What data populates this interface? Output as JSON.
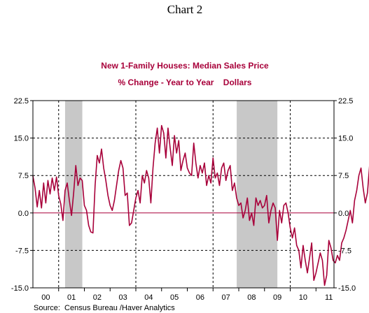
{
  "caption": "Chart 2",
  "chart_data": {
    "type": "line",
    "title": "New 1-Family Houses: Median Sales Price",
    "subtitle": "% Change - Year to Year    Dollars",
    "source": "Source:  Census Bureau /Haver Analytics",
    "ylim": [
      -15.0,
      22.5
    ],
    "y_ticks": [
      "22.5",
      "15.0",
      "7.5",
      "0.0",
      "-7.5",
      "-15.0"
    ],
    "y_tick_values": [
      22.5,
      15.0,
      7.5,
      0.0,
      -7.5,
      -15.0
    ],
    "x_range": [
      2000.0,
      2011.7
    ],
    "x_tick_labels": [
      "00",
      "01",
      "02",
      "03",
      "04",
      "05",
      "06",
      "07",
      "08",
      "09",
      "10",
      "11"
    ],
    "grid": true,
    "recession_shading": [
      [
        2001.25,
        2001.92
      ],
      [
        2007.92,
        2009.5
      ]
    ],
    "colors": {
      "series": "#a8003a",
      "recession": "#c8c8c8",
      "zero_line": "#a8003a"
    },
    "series": [
      {
        "name": "",
        "frequency": "monthly",
        "start": 2000.0,
        "values": [
          7.4,
          5.0,
          1.2,
          4.5,
          1.0,
          6.0,
          2.0,
          6.5,
          3.8,
          7.0,
          4.5,
          7.2,
          3.5,
          1.8,
          -1.5,
          4.5,
          6.0,
          2.5,
          -0.5,
          4.0,
          9.5,
          5.5,
          7.0,
          6.5,
          1.5,
          0.5,
          -2.5,
          -3.8,
          -4.0,
          5.5,
          11.5,
          10.0,
          12.8,
          9.0,
          6.5,
          3.5,
          1.5,
          0.5,
          2.5,
          5.5,
          8.5,
          10.5,
          9.0,
          3.5,
          4.0,
          -2.5,
          -2.0,
          0.5,
          3.0,
          4.5,
          2.0,
          7.5,
          6.0,
          8.5,
          7.0,
          2.0,
          9.0,
          14.0,
          17.0,
          12.0,
          17.5,
          16.0,
          11.0,
          17.0,
          13.0,
          9.5,
          15.5,
          12.0,
          14.5,
          8.5,
          10.5,
          12.0,
          9.0,
          8.0,
          7.5,
          14.0,
          10.0,
          7.0,
          9.5,
          8.0,
          10.0,
          5.5,
          7.5,
          6.0,
          11.0,
          7.0,
          8.0,
          5.5,
          9.0,
          10.0,
          6.5,
          8.5,
          9.5,
          4.5,
          6.0,
          3.0,
          1.5,
          2.0,
          -1.0,
          0.5,
          3.0,
          -1.5,
          0.0,
          -2.5,
          3.0,
          1.5,
          2.5,
          1.0,
          1.5,
          3.5,
          -2.0,
          0.5,
          2.0,
          1.0,
          -5.5,
          0.5,
          -2.0,
          1.5,
          2.0,
          0.0,
          -3.0,
          -5.0,
          -3.0,
          -6.5,
          -7.5,
          -11.0,
          -6.5,
          -9.5,
          -12.0,
          -9.0,
          -6.0,
          -13.5,
          -12.0,
          -10.0,
          -8.0,
          -9.5,
          -14.5,
          -12.5,
          -5.5,
          -7.0,
          -9.5,
          -10.0,
          -8.5,
          -9.5,
          -6.0,
          -5.0,
          -3.5,
          -1.5,
          0.5,
          -2.0,
          2.5,
          4.5,
          7.5,
          9.0,
          5.0,
          2.0,
          4.0,
          9.5,
          3.5,
          6.5,
          1.5,
          8.5,
          3.0,
          9.5,
          -1.0,
          -5.5,
          -6.5,
          -5.0
        ]
      }
    ]
  }
}
